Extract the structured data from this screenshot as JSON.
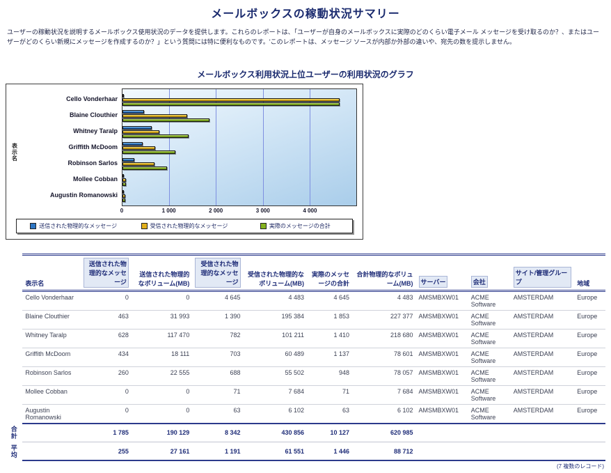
{
  "page": {
    "title": "メールボックスの稼動状況サマリー",
    "description": "ユーザーの稼動状況を説明するメールボックス使用状況のデータを提供します。これらのレポートは、「ユーザーが自身のメールボックスに実際のどのくらい電子メール メッセージを受け取るのか？、またはユーザーがどのくらい新規にメッセージを作成するのか？」という質問には特に便利なものです。'このレポートは、メッセージ ソースが内部か外部の違いや、宛先の数を提示しません。"
  },
  "chart_data": {
    "type": "bar",
    "orientation": "horizontal",
    "title": "メールボックス利用状況上位ユーザーの利用状況のグラフ",
    "category_axis_label": "表示名",
    "categories": [
      "Cello Vonderhaar",
      "Blaine Clouthier",
      "Whitney Taralp",
      "Griffith McDoom",
      "Robinson Sarlos",
      "Mollee Cobban",
      "Augustin Romanowski"
    ],
    "series": [
      {
        "name": "送信された物理的なメッセージ",
        "color": "#2e76c4",
        "values": [
          0,
          463,
          628,
          434,
          260,
          0,
          0
        ]
      },
      {
        "name": "受信された物理的なメッセージ",
        "color": "#e2b01c",
        "values": [
          4645,
          1390,
          782,
          703,
          688,
          71,
          63
        ]
      },
      {
        "name": "実際のメッセージの合計",
        "color": "#84b21e",
        "values": [
          4645,
          1853,
          1410,
          1137,
          948,
          71,
          63
        ]
      }
    ],
    "x_ticks": [
      "0",
      "1 000",
      "2 000",
      "3 000",
      "4 000"
    ],
    "x_tick_values": [
      0,
      1000,
      2000,
      3000,
      4000
    ],
    "xlim": [
      0,
      5000
    ],
    "grid": true,
    "legend_position": "bottom"
  },
  "table": {
    "headers": [
      {
        "label": "表示名",
        "align": "l",
        "boxed": false
      },
      {
        "label": "送信された物理的なメッセージ",
        "align": "r",
        "boxed": true
      },
      {
        "label": "送信された物理的なボリューム(MB)",
        "align": "r",
        "boxed": false
      },
      {
        "label": "受信された物理的なメッセージ",
        "align": "r",
        "boxed": true
      },
      {
        "label": "受信された物理的なボリューム(MB)",
        "align": "r",
        "boxed": false
      },
      {
        "label": "実際のメッセージの合計",
        "align": "r",
        "boxed": false
      },
      {
        "label": "合計物理的なボリューム(MB)",
        "align": "r",
        "boxed": false
      },
      {
        "label": "サーバー",
        "align": "l",
        "boxed": true
      },
      {
        "label": "会社",
        "align": "l",
        "boxed": true
      },
      {
        "label": "サイト/管理グループ",
        "align": "l",
        "boxed": true
      },
      {
        "label": "地域",
        "align": "l",
        "boxed": false
      }
    ],
    "rows": [
      [
        "Cello Vonderhaar",
        "0",
        "0",
        "4 645",
        "4 483",
        "4 645",
        "4 483",
        "AMSMBXW01",
        "ACME Software",
        "AMSTERDAM",
        "Europe"
      ],
      [
        "Blaine Clouthier",
        "463",
        "31 993",
        "1 390",
        "195 384",
        "1 853",
        "227 377",
        "AMSMBXW01",
        "ACME Software",
        "AMSTERDAM",
        "Europe"
      ],
      [
        "Whitney Taralp",
        "628",
        "117 470",
        "782",
        "101 211",
        "1 410",
        "218 680",
        "AMSMBXW01",
        "ACME Software",
        "AMSTERDAM",
        "Europe"
      ],
      [
        "Griffith McDoom",
        "434",
        "18 111",
        "703",
        "60 489",
        "1 137",
        "78 601",
        "AMSMBXW01",
        "ACME Software",
        "AMSTERDAM",
        "Europe"
      ],
      [
        "Robinson Sarlos",
        "260",
        "22 555",
        "688",
        "55 502",
        "948",
        "78 057",
        "AMSMBXW01",
        "ACME Software",
        "AMSTERDAM",
        "Europe"
      ],
      [
        "Mollee Cobban",
        "0",
        "0",
        "71",
        "7 684",
        "71",
        "7 684",
        "AMSMBXW01",
        "ACME Software",
        "AMSTERDAM",
        "Europe"
      ],
      [
        "Augustin Romanowski",
        "0",
        "0",
        "63",
        "6 102",
        "63",
        "6 102",
        "AMSMBXW01",
        "ACME Software",
        "AMSTERDAM",
        "Europe"
      ]
    ],
    "total_label": "合計",
    "total_row": [
      "1 785",
      "190 129",
      "8 342",
      "430 856",
      "10 127",
      "620 985"
    ],
    "average_label": "平均",
    "average_row": [
      "255",
      "27 161",
      "1 191",
      "61 551",
      "1 446",
      "88 712"
    ],
    "footer_note": "(7 複数のレコード)"
  }
}
